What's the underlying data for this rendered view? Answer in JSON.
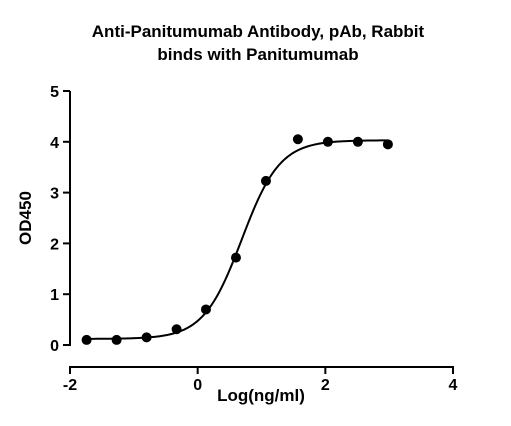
{
  "chart_data": {
    "type": "scatter",
    "title_lines": [
      "Anti-Panitumumab Antibody, pAb, Rabbit",
      "binds with Panitumumab"
    ],
    "xlabel": "Log(ng/ml)",
    "ylabel": "OD450",
    "xlim": [
      -2,
      4
    ],
    "ylim": [
      0,
      5
    ],
    "x_ticks": [
      -2,
      0,
      2,
      4
    ],
    "y_ticks": [
      0,
      1,
      2,
      3,
      4,
      5
    ],
    "x_tick_labels": [
      "-2",
      "0",
      "2",
      "4"
    ],
    "y_tick_labels": [
      "0",
      "1",
      "2",
      "3",
      "4",
      "5"
    ],
    "grid": false,
    "legend": "none",
    "series": [
      {
        "points": [
          {
            "x": -1.74,
            "y": 0.1
          },
          {
            "x": -1.27,
            "y": 0.1
          },
          {
            "x": -0.8,
            "y": 0.15
          },
          {
            "x": -0.33,
            "y": 0.31
          },
          {
            "x": 0.13,
            "y": 0.7
          },
          {
            "x": 0.6,
            "y": 1.72
          },
          {
            "x": 1.07,
            "y": 3.23
          },
          {
            "x": 1.57,
            "y": 4.05
          },
          {
            "x": 2.04,
            "y": 4.0
          },
          {
            "x": 2.51,
            "y": 4.0
          },
          {
            "x": 2.98,
            "y": 3.95
          }
        ],
        "fit_curve": {
          "model": "4PL",
          "bottom": 0.12,
          "top": 4.03,
          "log_ec50": 0.69,
          "hill_slope": 1.45,
          "x_range": [
            -1.74,
            2.98
          ]
        },
        "color": "#000000"
      }
    ]
  }
}
